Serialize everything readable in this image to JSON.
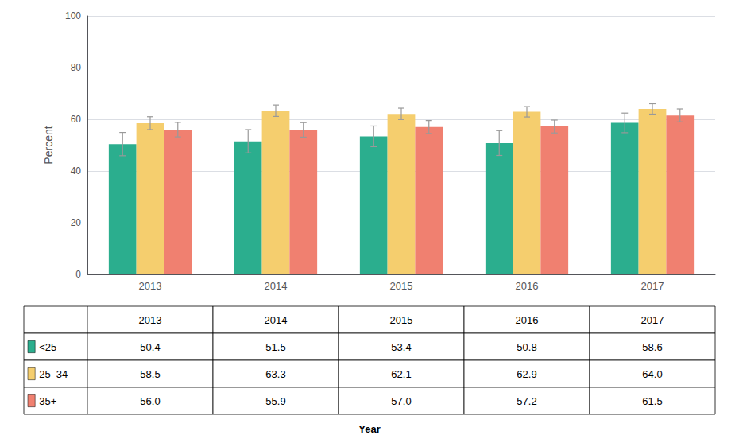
{
  "chart_data": {
    "type": "bar",
    "xlabel": "Year",
    "ylabel": "Percent",
    "categories": [
      "2013",
      "2014",
      "2015",
      "2016",
      "2017"
    ],
    "series": [
      {
        "name": "<25",
        "color": "#2BAE8E",
        "values": [
          50.4,
          51.5,
          53.4,
          50.8,
          58.6
        ],
        "errors": [
          4.5,
          4.5,
          4.0,
          4.8,
          3.8
        ],
        "value_labels": [
          "50.4",
          "51.5",
          "53.4",
          "50.8",
          "58.6"
        ]
      },
      {
        "name": "25–34",
        "color": "#F5CE6E",
        "values": [
          58.5,
          63.3,
          62.1,
          62.9,
          64.0
        ],
        "errors": [
          2.5,
          2.2,
          2.2,
          2.0,
          2.0
        ],
        "value_labels": [
          "58.5",
          "63.3",
          "62.1",
          "62.9",
          "64.0"
        ]
      },
      {
        "name": "35+",
        "color": "#F08070",
        "values": [
          56.0,
          55.9,
          57.0,
          57.2,
          61.5
        ],
        "errors": [
          2.8,
          2.8,
          2.5,
          2.5,
          2.5
        ],
        "value_labels": [
          "56.0",
          "55.9",
          "57.0",
          "57.2",
          "61.5"
        ]
      }
    ],
    "ylim": [
      0,
      100
    ],
    "yticks": [
      0,
      20,
      40,
      60,
      80,
      100
    ],
    "grid": true
  }
}
